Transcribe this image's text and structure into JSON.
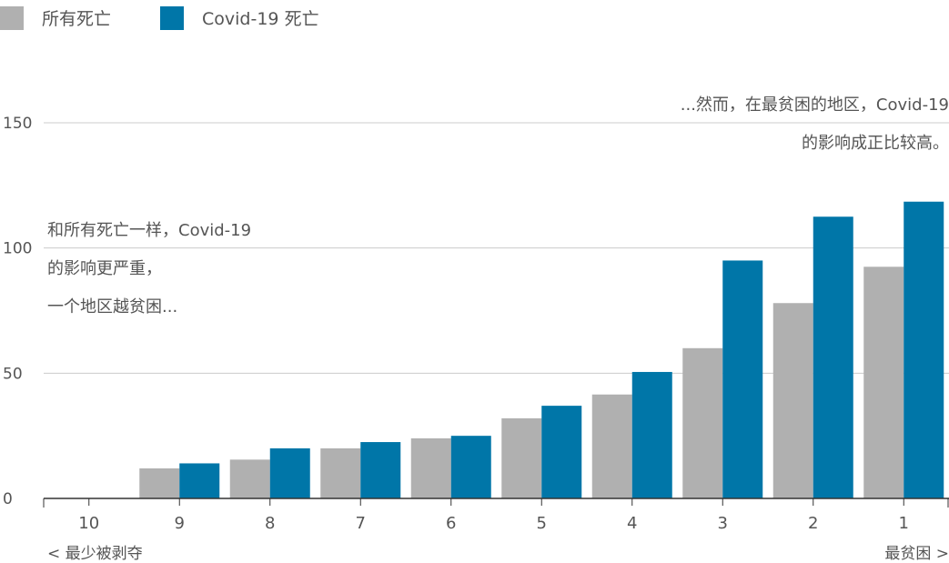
{
  "legend": {
    "all_deaths": "所有死亡",
    "covid_deaths": "Covid-19 死亡"
  },
  "annotations": {
    "left": [
      "和所有死亡一样，Covid-19",
      "的影响更严重，",
      "一个地区越贫困..."
    ],
    "right": [
      "...然而，在最贫困的地区，Covid-19",
      "的影响成正比较高。"
    ]
  },
  "x_axis_ends": {
    "left": "< 最少被剥夺",
    "right": "最贫困 >"
  },
  "colors": {
    "all_deaths": "#b0b0b0",
    "covid_deaths": "#0076a8",
    "grid": "#cccccc",
    "axis": "#333333"
  },
  "chart_data": {
    "type": "bar",
    "categories": [
      "10",
      "9",
      "8",
      "7",
      "6",
      "5",
      "4",
      "3",
      "2",
      "1"
    ],
    "series": [
      {
        "name": "所有死亡",
        "values": [
          0,
          12,
          15.5,
          20,
          24,
          32,
          41.5,
          60,
          78,
          92.5
        ]
      },
      {
        "name": "Covid-19 死亡",
        "values": [
          0,
          14,
          20,
          22.5,
          25,
          37,
          50.5,
          95,
          112.5,
          118.5
        ]
      }
    ],
    "ylim": [
      0,
      150
    ],
    "yticks": [
      0,
      50,
      100,
      150
    ],
    "grid": true,
    "legend_position": "top-left"
  }
}
